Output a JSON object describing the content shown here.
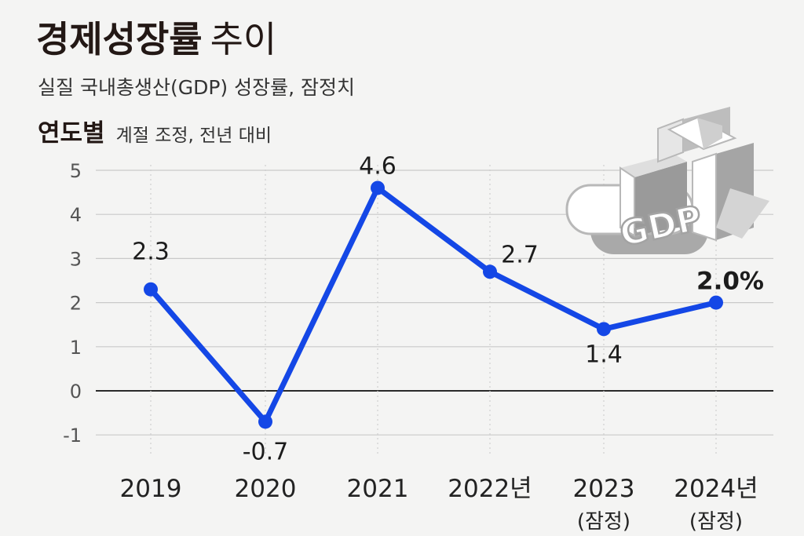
{
  "header": {
    "title_strong": "경제성장률",
    "title_light": "추이",
    "subtitle": "실질 국내총생산(GDP) 성장률, 잠정치",
    "section_strong": "연도별",
    "section_light": "계절 조정, 전년 대비"
  },
  "illustration": {
    "label": "GDP",
    "icon": "gdp-3d-arrow-icon"
  },
  "colors": {
    "line": "#1447e6",
    "grid": "#c9c9c9",
    "zero_line": "#2a2a2a",
    "background": "#f4f4f3"
  },
  "chart_data": {
    "type": "line",
    "categories": [
      "2019",
      "2020",
      "2021",
      "2022년",
      "2023\n(잠정)",
      "2024년\n(잠정)"
    ],
    "series": [
      {
        "values": [
          2.3,
          -0.7,
          4.6,
          2.7,
          1.4,
          2.0
        ]
      }
    ],
    "data_labels": [
      "2.3",
      "-0.7",
      "4.6",
      "2.7",
      "1.4",
      "2.0%"
    ],
    "yticks": [
      "5",
      "4",
      "3",
      "2",
      "1",
      "0",
      "-1"
    ],
    "ylim": [
      -1,
      5
    ],
    "grid": true,
    "xlabel": "",
    "ylabel": ""
  }
}
